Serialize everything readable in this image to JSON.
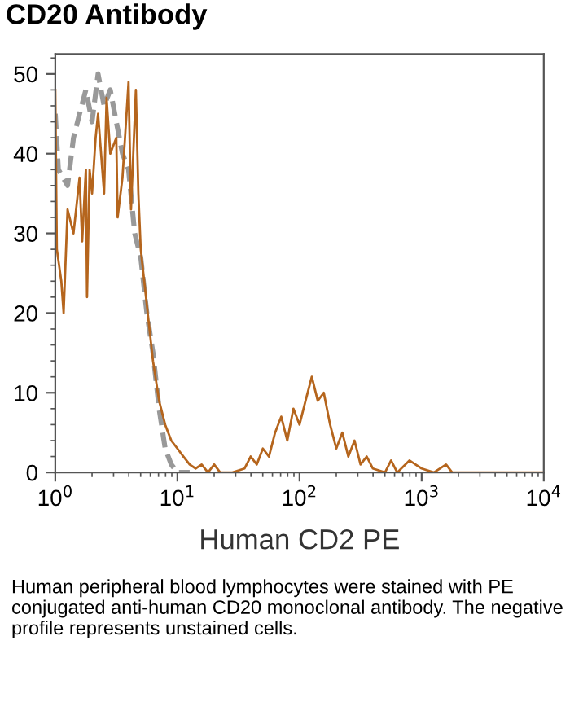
{
  "chart_data": {
    "type": "line",
    "title": "CD20 Antibody",
    "xlabel": "Human CD2 PE",
    "annotations": [
      "Human peripheral blood lymphocytes were stained with PE conjugated anti-human CD20 monoclonal antibody. The negative profile represents unstained cells."
    ],
    "log": "x",
    "xlim": [
      1,
      10000
    ],
    "xticks": [
      {
        "value": 1,
        "label": "10$^{0}$"
      },
      {
        "value": 10,
        "label": "10$^{1}$"
      },
      {
        "value": 100,
        "label": "10$^{2}$"
      },
      {
        "value": 1000,
        "label": "10$^{3}$"
      },
      {
        "value": 10000,
        "label": "10$^{4}$"
      }
    ],
    "ylim": [
      0,
      52.5
    ],
    "yticks": [
      0,
      10,
      20,
      30,
      40,
      50
    ],
    "grid": false,
    "legend": false,
    "series": [
      {
        "color": "#999999",
        "line_style": "dashed",
        "x": [
          1.0,
          1.06,
          1.26,
          1.41,
          1.58,
          1.78,
          2.0,
          2.24,
          2.51,
          2.82,
          3.16,
          3.55,
          3.98,
          4.47,
          5.01,
          5.62,
          6.31,
          7.08,
          7.94,
          8.91,
          10,
          12.6
        ],
        "values": [
          45,
          38,
          36,
          42,
          45,
          48,
          44,
          50,
          46,
          48,
          44,
          40,
          38,
          30,
          27,
          20,
          15,
          8,
          3,
          1,
          0,
          0
        ]
      },
      {
        "color": "#b5651d",
        "line_style": "solid",
        "x": [
          1.0,
          1.03,
          1.12,
          1.17,
          1.26,
          1.41,
          1.58,
          1.66,
          1.78,
          1.82,
          1.91,
          2.0,
          2.14,
          2.24,
          2.51,
          2.63,
          2.82,
          3.16,
          3.24,
          3.55,
          3.98,
          4.17,
          4.57,
          4.79,
          5.01,
          5.62,
          6.31,
          7.08,
          7.94,
          8.91,
          10,
          11.2,
          12.6,
          14.1,
          15.8,
          17.8,
          20,
          22.4,
          28.2,
          35.5,
          39.8,
          44.7,
          50.1,
          56.2,
          63.1,
          70.8,
          79.4,
          89.1,
          100,
          112,
          126,
          141,
          158,
          178,
          200,
          224,
          251,
          282,
          316,
          355,
          398,
          501,
          562,
          631,
          794,
          1000,
          1259,
          1585,
          1778,
          10000
        ],
        "values": [
          48,
          28,
          24,
          20,
          33,
          30,
          37,
          29,
          38,
          22,
          38,
          35,
          42,
          45,
          35,
          47,
          40,
          42,
          32,
          37,
          49,
          33,
          48,
          35,
          28,
          21,
          14,
          9,
          6,
          4,
          3,
          2,
          1,
          0.5,
          1,
          0,
          1,
          0,
          0,
          0.5,
          2,
          1,
          3,
          2,
          5,
          7,
          4,
          8,
          6,
          9,
          12,
          9,
          10,
          6,
          3,
          5,
          2,
          4,
          1,
          2,
          0.5,
          0,
          1.5,
          0,
          1.5,
          0.5,
          0,
          1,
          0,
          0
        ]
      }
    ]
  }
}
